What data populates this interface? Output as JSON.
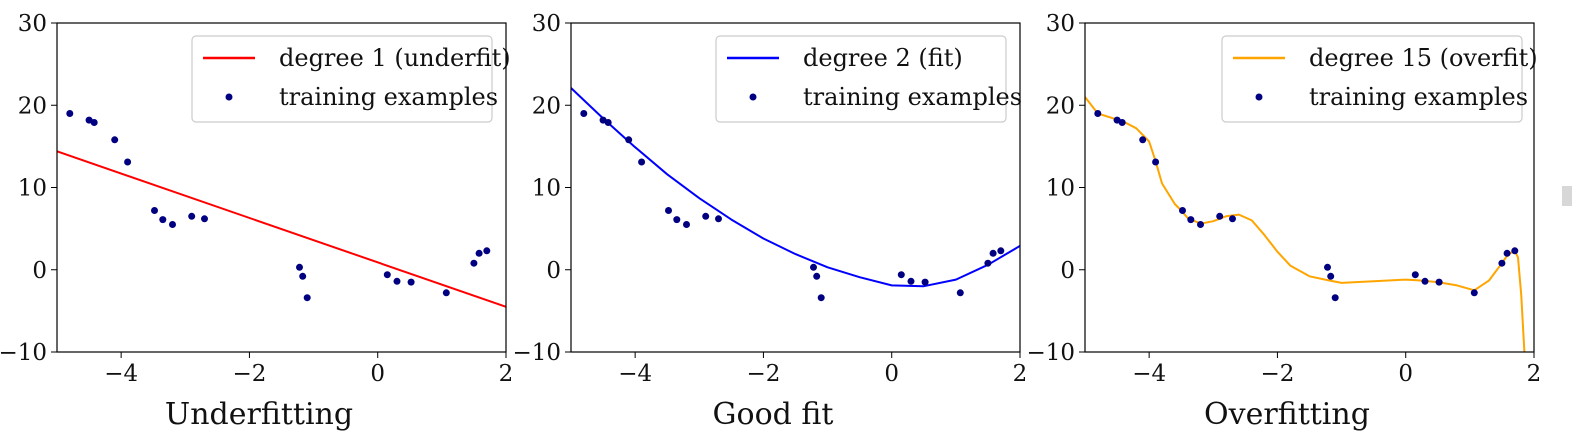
{
  "chart_data": [
    {
      "type": "line",
      "xlabel": "Underfitting",
      "xlim": [
        -5,
        2
      ],
      "ylim": [
        -10,
        30
      ],
      "xticks": [
        -4,
        -2,
        0,
        2
      ],
      "yticks": [
        -10,
        0,
        10,
        20,
        30
      ],
      "xtick_labels": [
        "−4",
        "−2",
        "0",
        "2"
      ],
      "ytick_labels": [
        "−10",
        "0",
        "10",
        "20",
        "30"
      ],
      "legend_position": "top-right",
      "series": [
        {
          "name": "degree 1 (underfit)",
          "kind": "line",
          "color": "#ff0000",
          "x": [
            -5.0,
            2.0
          ],
          "y": [
            14.4,
            -4.5
          ]
        },
        {
          "name": "training examples",
          "kind": "scatter",
          "color": "#000080",
          "x": [
            -4.8,
            -4.5,
            -4.42,
            -4.1,
            -3.9,
            -3.48,
            -3.35,
            -3.2,
            -2.9,
            -2.7,
            -1.22,
            -1.17,
            -1.1,
            0.15,
            0.3,
            0.52,
            1.07,
            1.5,
            1.58,
            1.7
          ],
          "y": [
            19.0,
            18.2,
            17.9,
            15.8,
            13.1,
            7.2,
            6.1,
            5.5,
            6.5,
            6.2,
            0.3,
            -0.8,
            -3.4,
            -0.6,
            -1.4,
            -1.5,
            -2.8,
            0.8,
            2.0,
            2.3
          ]
        }
      ]
    },
    {
      "type": "line",
      "xlabel": "Good fit",
      "xlim": [
        -5,
        2
      ],
      "ylim": [
        -10,
        30
      ],
      "xticks": [
        -4,
        -2,
        0,
        2
      ],
      "yticks": [
        -10,
        0,
        10,
        20,
        30
      ],
      "xtick_labels": [
        "−4",
        "−2",
        "0",
        "2"
      ],
      "ytick_labels": [
        "−10",
        "0",
        "10",
        "20",
        "30"
      ],
      "legend_position": "top-right",
      "series": [
        {
          "name": "degree 2 (fit)",
          "kind": "line",
          "color": "#0000ff",
          "x": [
            -5.0,
            -4.5,
            -4.0,
            -3.5,
            -3.0,
            -2.5,
            -2.0,
            -1.5,
            -1.0,
            -0.5,
            0.0,
            0.5,
            1.0,
            1.5,
            2.0
          ],
          "y": [
            22.1,
            18.4,
            14.9,
            11.6,
            8.7,
            6.1,
            3.8,
            1.9,
            0.3,
            -0.9,
            -1.9,
            -2.0,
            -1.2,
            0.6,
            2.9
          ]
        },
        {
          "name": "training examples",
          "kind": "scatter",
          "color": "#000080",
          "x": [
            -4.8,
            -4.5,
            -4.42,
            -4.1,
            -3.9,
            -3.48,
            -3.35,
            -3.2,
            -2.9,
            -2.7,
            -1.22,
            -1.17,
            -1.1,
            0.15,
            0.3,
            0.52,
            1.07,
            1.5,
            1.58,
            1.7
          ],
          "y": [
            19.0,
            18.2,
            17.9,
            15.8,
            13.1,
            7.2,
            6.1,
            5.5,
            6.5,
            6.2,
            0.3,
            -0.8,
            -3.4,
            -0.6,
            -1.4,
            -1.5,
            -2.8,
            0.8,
            2.0,
            2.3
          ]
        }
      ]
    },
    {
      "type": "line",
      "xlabel": "Overfitting",
      "xlim": [
        -5,
        2
      ],
      "ylim": [
        -10,
        30
      ],
      "xticks": [
        -4,
        -2,
        0,
        2
      ],
      "yticks": [
        -10,
        0,
        10,
        20,
        30
      ],
      "xtick_labels": [
        "−4",
        "−2",
        "0",
        "2"
      ],
      "ytick_labels": [
        "−10",
        "0",
        "10",
        "20",
        "30"
      ],
      "legend_position": "top-right",
      "series": [
        {
          "name": "degree 15 (overfit)",
          "kind": "line",
          "color": "#ffa500",
          "x": [
            -5.0,
            -4.8,
            -4.6,
            -4.4,
            -4.2,
            -4.0,
            -3.9,
            -3.8,
            -3.6,
            -3.5,
            -3.4,
            -3.2,
            -3.0,
            -2.8,
            -2.6,
            -2.4,
            -2.2,
            -2.0,
            -1.8,
            -1.5,
            -1.2,
            -1.0,
            -0.5,
            0.0,
            0.2,
            0.5,
            0.8,
            1.07,
            1.3,
            1.5,
            1.6,
            1.7,
            1.75,
            1.8,
            1.85
          ],
          "y": [
            21.0,
            19.0,
            18.5,
            18.0,
            17.2,
            15.6,
            13.2,
            10.5,
            8.0,
            7.2,
            6.3,
            5.6,
            5.9,
            6.5,
            6.7,
            6.0,
            4.2,
            2.2,
            0.5,
            -0.8,
            -1.3,
            -1.6,
            -1.4,
            -1.2,
            -1.3,
            -1.5,
            -1.9,
            -2.5,
            -1.3,
            0.8,
            1.9,
            2.3,
            1.5,
            -3.0,
            -10.0
          ]
        },
        {
          "name": "training examples",
          "kind": "scatter",
          "color": "#000080",
          "x": [
            -4.8,
            -4.5,
            -4.42,
            -4.1,
            -3.9,
            -3.48,
            -3.35,
            -3.2,
            -2.9,
            -2.7,
            -1.22,
            -1.17,
            -1.1,
            0.15,
            0.3,
            0.52,
            1.07,
            1.5,
            1.58,
            1.7
          ],
          "y": [
            19.0,
            18.2,
            17.9,
            15.8,
            13.1,
            7.2,
            6.1,
            5.5,
            6.5,
            6.2,
            0.3,
            -0.8,
            -3.4,
            -0.6,
            -1.4,
            -1.5,
            -2.8,
            0.8,
            2.0,
            2.3
          ]
        }
      ]
    }
  ]
}
